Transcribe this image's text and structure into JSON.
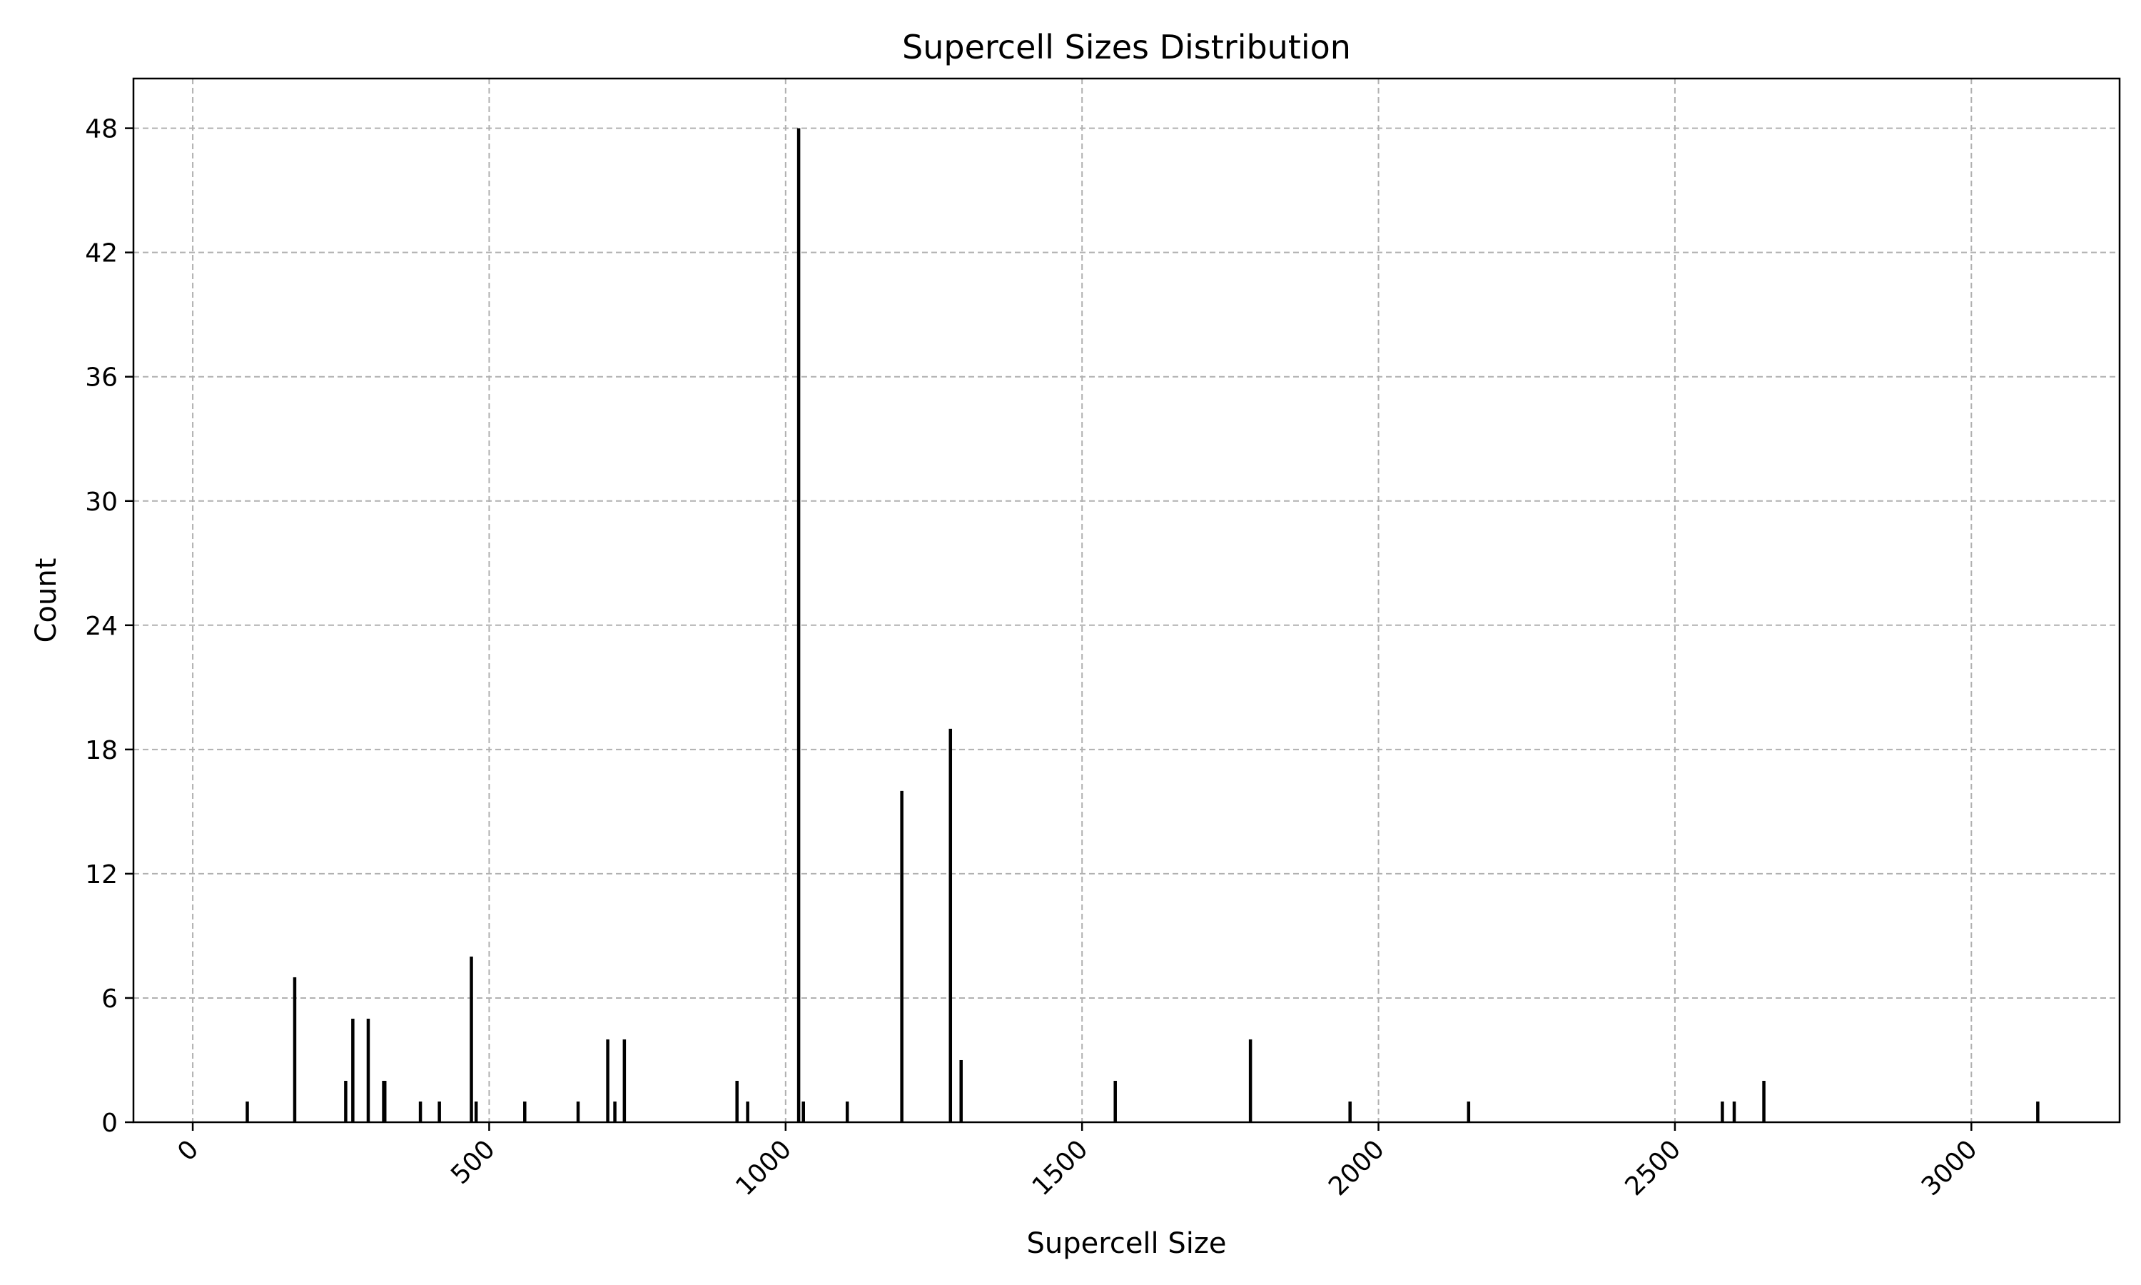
{
  "chart_data": {
    "type": "bar",
    "title": "Supercell Sizes Distribution",
    "xlabel": "Supercell Size",
    "ylabel": "Count",
    "xlim": [
      -100,
      3250
    ],
    "ylim": [
      0,
      50.4
    ],
    "xticks": [
      0,
      500,
      1000,
      1500,
      2000,
      2500,
      3000
    ],
    "xtick_labels": [
      "0",
      "500",
      "1000",
      "1500",
      "2000",
      "2500",
      "3000"
    ],
    "yticks": [
      0,
      6,
      12,
      18,
      24,
      30,
      36,
      42,
      48
    ],
    "ytick_labels": [
      "0",
      "6",
      "12",
      "18",
      "24",
      "30",
      "36",
      "42",
      "48"
    ],
    "grid": true,
    "x": [
      92,
      172,
      258,
      270,
      296,
      322,
      324,
      384,
      416,
      470,
      478,
      560,
      650,
      700,
      712,
      728,
      918,
      936,
      1022,
      1030,
      1104,
      1196,
      1278,
      1296,
      1556,
      1784,
      1952,
      2152,
      2580,
      2600,
      2650,
      3112
    ],
    "values": [
      1,
      7,
      2,
      5,
      5,
      2,
      2,
      1,
      1,
      8,
      1,
      1,
      1,
      4,
      1,
      4,
      2,
      1,
      48,
      1,
      1,
      16,
      19,
      3,
      2,
      4,
      1,
      1,
      1,
      1,
      2,
      1
    ]
  }
}
